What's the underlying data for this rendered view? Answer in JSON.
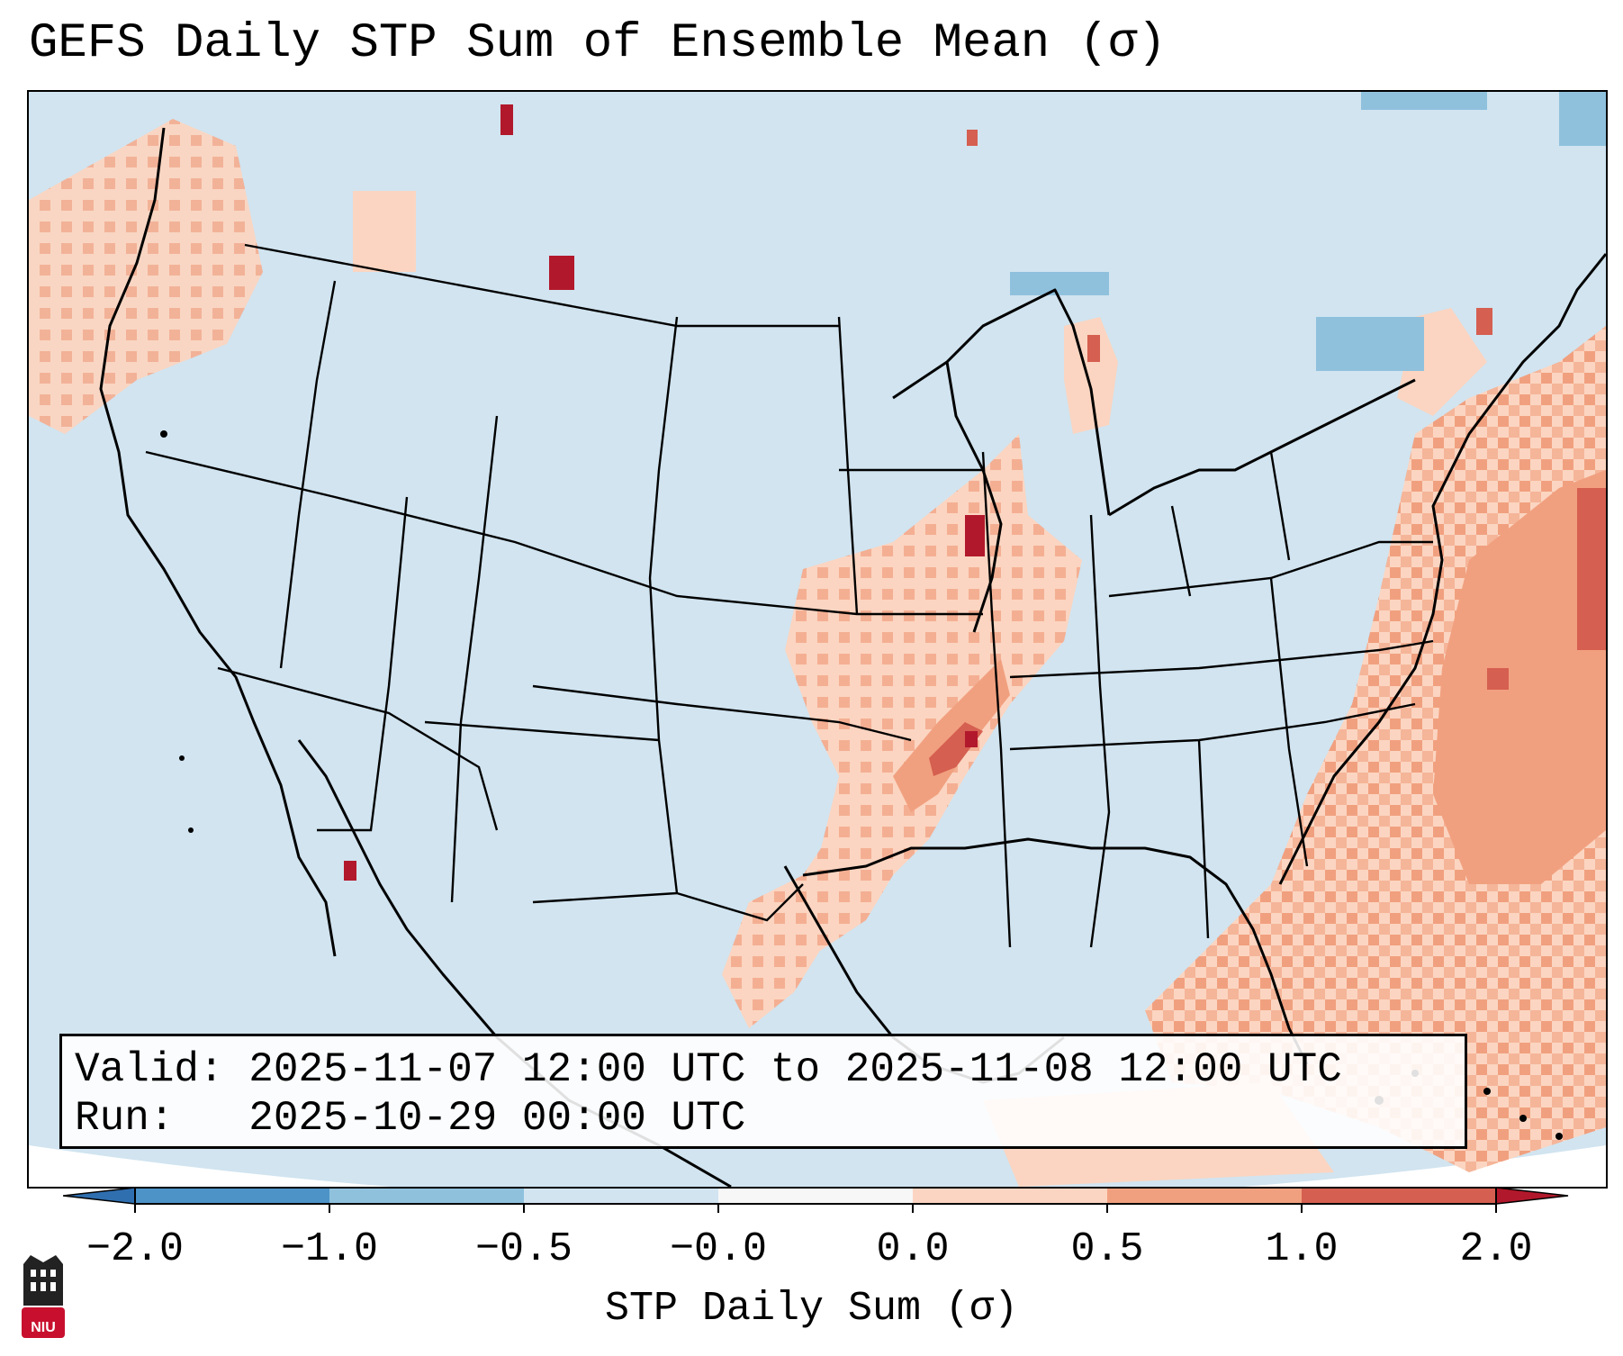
{
  "title": "GEFS Daily STP Sum of Ensemble Mean (σ)",
  "info": {
    "valid_line": "Valid: 2025-11-07 12:00 UTC to 2025-11-08 12:00 UTC",
    "run_line": "Run:   2025-10-29 00:00 UTC"
  },
  "colorbar": {
    "label": "STP Daily Sum (σ)",
    "ticks": [
      "−2.0",
      "−1.0",
      "−0.5",
      "−0.0",
      "0.0",
      "0.5",
      "1.0",
      "2.0"
    ],
    "bins": [
      {
        "range": "below -2.0",
        "color": "#2f6fb0"
      },
      {
        "range": "-2.0 to -1.0",
        "color": "#4d93c8"
      },
      {
        "range": "-1.0 to -0.5",
        "color": "#8fc1dd"
      },
      {
        "range": "-0.5 to -0.0",
        "color": "#d1e4f0"
      },
      {
        "range": "-0.0 to 0.0",
        "color": "#f7f7f7"
      },
      {
        "range": "0.0 to 0.5",
        "color": "#fbd5c1"
      },
      {
        "range": "0.5 to 1.0",
        "color": "#f1a07f"
      },
      {
        "range": "1.0 to 2.0",
        "color": "#d55f50"
      },
      {
        "range": "above 2.0",
        "color": "#b2182b"
      }
    ]
  },
  "map": {
    "background_color": "#d1e4f0",
    "highlights": [
      {
        "region": "Arkansas-Tennessee corridor",
        "level": "1.0 to 2.0"
      },
      {
        "region": "Illinois-Iowa border",
        "level": "1.0 to 2.0"
      },
      {
        "region": "Eastern Montana",
        "level": "above 2.0"
      },
      {
        "region": "Gulf of California coast",
        "level": "above 2.0"
      },
      {
        "region": "Western Atlantic",
        "level": "0.5 to 1.0"
      }
    ]
  },
  "logo": {
    "text": "NIU"
  }
}
